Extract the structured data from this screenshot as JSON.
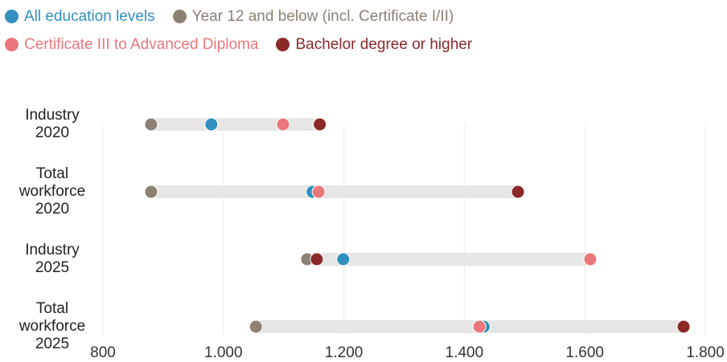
{
  "chart_data": {
    "type": "dot",
    "categories": [
      "Industry 2020",
      "Total workforce 2020",
      "Industry 2025",
      "Total workforce 2025"
    ],
    "series": [
      {
        "name": "All education levels",
        "color": "#3190bd",
        "values": [
          980,
          1148,
          1199,
          1432
        ]
      },
      {
        "name": "Year 12 and below (incl. Certificate I/II)",
        "color": "#8c8173",
        "values": [
          880,
          880,
          1139,
          1054
        ]
      },
      {
        "name": "Certificate III to Advanced Diploma",
        "color": "#ea777b",
        "values": [
          1099,
          1158,
          1609,
          1425
        ]
      },
      {
        "name": "Bachelor degree or higher",
        "color": "#8b2828",
        "values": [
          1160,
          1489,
          1155,
          1764
        ]
      }
    ],
    "xlim": [
      800,
      1800
    ],
    "xticks": [
      800,
      {
        "value": 1000,
        "label": "1.000"
      },
      {
        "value": 1200,
        "label": "1.200"
      },
      {
        "value": 1400,
        "label": "1.400"
      },
      {
        "value": 1600,
        "label": "1.600"
      },
      {
        "value": 1800,
        "label": "1.800"
      }
    ],
    "grid": true
  }
}
